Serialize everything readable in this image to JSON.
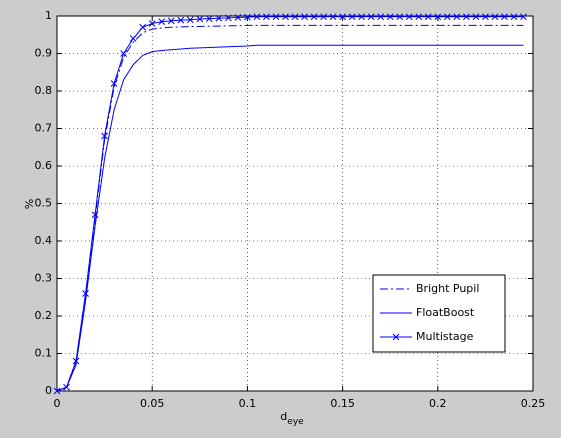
{
  "chart_data": {
    "type": "line",
    "xlabel": "d",
    "xlabel_subscript": "eye",
    "ylabel": "%",
    "x": [
      0,
      0.005,
      0.01,
      0.015,
      0.02,
      0.025,
      0.03,
      0.035,
      0.04,
      0.045,
      0.05,
      0.055,
      0.06,
      0.065,
      0.07,
      0.075,
      0.08,
      0.085,
      0.09,
      0.095,
      0.1,
      0.105,
      0.11,
      0.115,
      0.12,
      0.125,
      0.13,
      0.135,
      0.14,
      0.145,
      0.15,
      0.155,
      0.16,
      0.165,
      0.17,
      0.175,
      0.18,
      0.185,
      0.19,
      0.195,
      0.2,
      0.205,
      0.21,
      0.215,
      0.22,
      0.225,
      0.23,
      0.235,
      0.24,
      0.245
    ],
    "series": [
      {
        "name": "Bright Pupil",
        "color": "#0000ff",
        "linestyle": "dashdot",
        "marker": "none",
        "values": [
          0,
          0.01,
          0.08,
          0.25,
          0.46,
          0.67,
          0.81,
          0.89,
          0.93,
          0.955,
          0.965,
          0.968,
          0.97,
          0.971,
          0.972,
          0.972,
          0.973,
          0.973,
          0.974,
          0.974,
          0.975,
          0.975,
          0.975,
          0.975,
          0.975,
          0.975,
          0.975,
          0.975,
          0.975,
          0.975,
          0.975,
          0.975,
          0.975,
          0.975,
          0.975,
          0.975,
          0.975,
          0.975,
          0.975,
          0.975,
          0.975,
          0.975,
          0.975,
          0.975,
          0.975,
          0.975,
          0.975,
          0.975,
          0.975,
          0.975
        ]
      },
      {
        "name": "FloatBoost",
        "color": "#0000ff",
        "linestyle": "solid",
        "marker": "none",
        "values": [
          0,
          0.01,
          0.07,
          0.24,
          0.44,
          0.62,
          0.75,
          0.83,
          0.87,
          0.895,
          0.905,
          0.908,
          0.91,
          0.912,
          0.914,
          0.915,
          0.916,
          0.917,
          0.918,
          0.919,
          0.92,
          0.922,
          0.922,
          0.922,
          0.922,
          0.922,
          0.922,
          0.922,
          0.922,
          0.922,
          0.922,
          0.922,
          0.922,
          0.922,
          0.922,
          0.922,
          0.922,
          0.922,
          0.922,
          0.922,
          0.922,
          0.922,
          0.922,
          0.922,
          0.922,
          0.922,
          0.922,
          0.922,
          0.922,
          0.922
        ]
      },
      {
        "name": "Multistage",
        "color": "#0000ff",
        "linestyle": "solid",
        "marker": "x",
        "values": [
          0,
          0.01,
          0.08,
          0.26,
          0.47,
          0.68,
          0.82,
          0.9,
          0.94,
          0.97,
          0.98,
          0.985,
          0.987,
          0.989,
          0.99,
          0.992,
          0.993,
          0.994,
          0.995,
          0.996,
          0.997,
          0.998,
          0.998,
          0.998,
          0.998,
          0.998,
          0.998,
          0.998,
          0.998,
          0.998,
          0.998,
          0.998,
          0.998,
          0.998,
          0.998,
          0.998,
          0.998,
          0.998,
          0.998,
          0.998,
          0.998,
          0.998,
          0.998,
          0.998,
          0.998,
          0.998,
          0.998,
          0.998,
          0.998,
          0.998
        ]
      }
    ],
    "xlim": [
      0,
      0.25
    ],
    "xticks": [
      0,
      0.05,
      0.1,
      0.15,
      0.2,
      0.25
    ],
    "ylim": [
      0,
      1
    ],
    "yticks": [
      0,
      0.1,
      0.2,
      0.3,
      0.4,
      0.5,
      0.6,
      0.7,
      0.8,
      0.9,
      1
    ],
    "grid": true,
    "legend": "lower right"
  }
}
